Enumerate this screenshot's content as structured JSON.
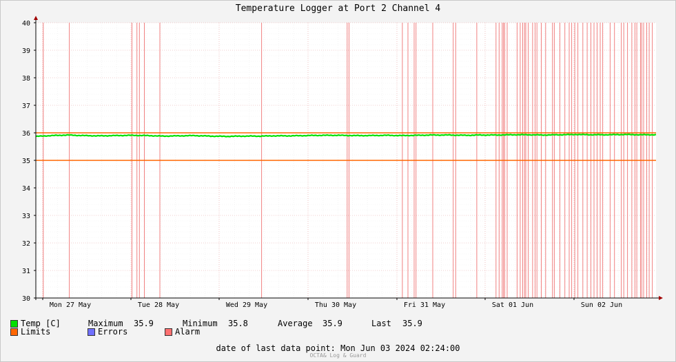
{
  "chart_data": {
    "type": "line",
    "title": "Temperature Logger at Port 2 Channel 4",
    "ylim": [
      30,
      40
    ],
    "y_ticks": [
      "30",
      "31",
      "32",
      "33",
      "34",
      "35",
      "36",
      "37",
      "38",
      "39",
      "40"
    ],
    "x_ticks": [
      "Mon 27 May",
      "Tue 28 May",
      "Wed 29 May",
      "Thu 30 May",
      "Fri 31 May",
      "Sat 01 Jun",
      "Sun 02 Jun"
    ],
    "grid": true,
    "series": [
      {
        "name": "Temp [C]",
        "color": "#00e000",
        "values": [
          35.87,
          35.9,
          35.92,
          35.9,
          35.89,
          35.9,
          35.91,
          35.9,
          35.88,
          35.89,
          35.9,
          35.88,
          35.87,
          35.88,
          35.88,
          35.89,
          35.89,
          35.9,
          35.91,
          35.91,
          35.9,
          35.9,
          35.91,
          35.9,
          35.91,
          35.92,
          35.92,
          35.91,
          35.92,
          35.92,
          35.93,
          35.93,
          35.92,
          35.93,
          35.94,
          35.93,
          35.93,
          35.94,
          35.93,
          35.93
        ]
      },
      {
        "name": "Limits",
        "color": "#ff6600",
        "values": [
          35.0,
          36.0
        ]
      }
    ],
    "alarm_positions_fraction": [
      0.012,
      0.054,
      0.155,
      0.163,
      0.167,
      0.175,
      0.2,
      0.364,
      0.502,
      0.505,
      0.591,
      0.6,
      0.61,
      0.613,
      0.64,
      0.673,
      0.677,
      0.711,
      0.742,
      0.747,
      0.752,
      0.754,
      0.756,
      0.76,
      0.776,
      0.781,
      0.785,
      0.788,
      0.79,
      0.794,
      0.801,
      0.805,
      0.808,
      0.815,
      0.822,
      0.833,
      0.836,
      0.845,
      0.853,
      0.86,
      0.864,
      0.869,
      0.874,
      0.882,
      0.889,
      0.895,
      0.9,
      0.905,
      0.91,
      0.914,
      0.926,
      0.933,
      0.944,
      0.948,
      0.954,
      0.961,
      0.966,
      0.969,
      0.975,
      0.977,
      0.98,
      0.985,
      0.989,
      0.994
    ]
  },
  "legend": {
    "temp_label": "Temp [C]",
    "maximum_label": "Maximum",
    "maximum_value": "35.9",
    "minimum_label": "Minimum",
    "minimum_value": "35.8",
    "average_label": "Average",
    "average_value": "35.9",
    "last_label": "Last",
    "last_value": "35.9",
    "limits_label": "Limits",
    "errors_label": "Errors",
    "alarm_label": "Alarm",
    "colors": {
      "temp": "#00e000",
      "limits": "#ff6600",
      "errors": "#7070ff",
      "alarm": "#ff7070"
    }
  },
  "footer": {
    "last_point": "date of last data point:  Mon Jun 03 2024 02:24:00",
    "credit": "OCTA& Log & Guard"
  }
}
